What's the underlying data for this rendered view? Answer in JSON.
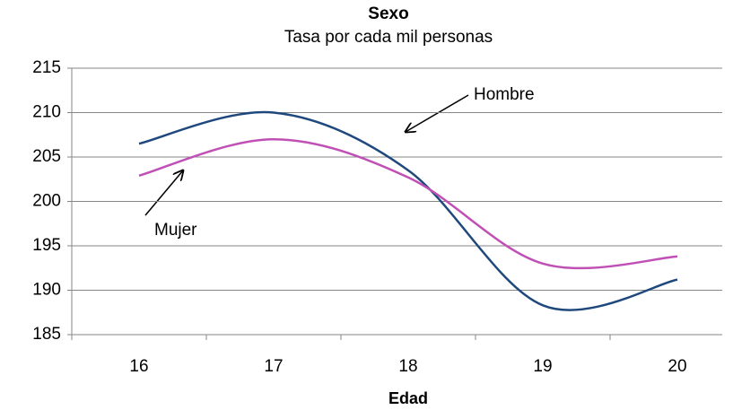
{
  "chart_data": {
    "type": "line",
    "title": "Sexo",
    "subtitle": "Tasa por cada mil personas",
    "x_label": "Edad",
    "categories": [
      "16",
      "17",
      "18",
      "19",
      "20"
    ],
    "series": [
      {
        "name": "Hombre",
        "color": "#1f497d",
        "values": [
          206.5,
          210,
          203.5,
          188.3,
          191.2
        ]
      },
      {
        "name": "Mujer",
        "color": "#c050b5",
        "values": [
          202.9,
          207,
          202.7,
          193,
          193.8
        ]
      }
    ],
    "ylim": [
      185,
      215
    ],
    "yticks": [
      185,
      190,
      195,
      200,
      205,
      210,
      215
    ],
    "grid": true,
    "smooth": true
  }
}
